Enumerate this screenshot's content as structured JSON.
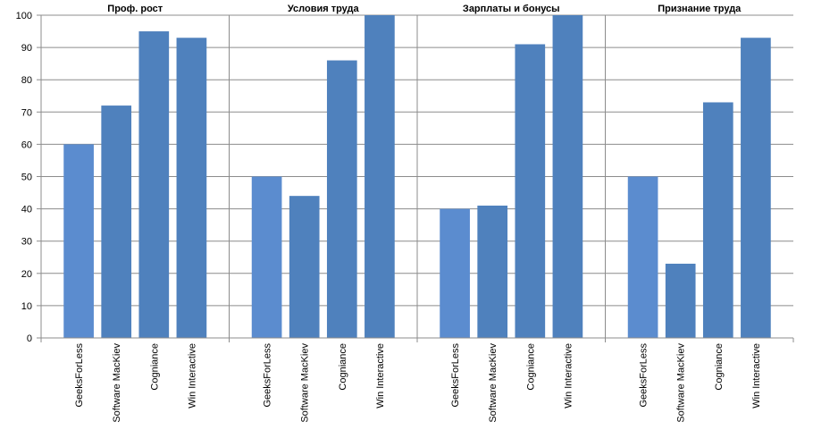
{
  "chart_data": {
    "type": "bar",
    "groups": [
      {
        "title": "Проф. рост",
        "values": [
          60,
          72,
          95,
          93
        ]
      },
      {
        "title": "Условия труда",
        "values": [
          50,
          44,
          86,
          100
        ]
      },
      {
        "title": "Зарплаты и бонусы",
        "values": [
          40,
          41,
          91,
          100
        ]
      },
      {
        "title": "Признание труда",
        "values": [
          50,
          23,
          73,
          93
        ]
      }
    ],
    "categories": [
      "GeeksForLess",
      "Software MacKiev",
      "Cogniance",
      "Win Interactive"
    ],
    "ylim": [
      0,
      100
    ],
    "yticks": [
      0,
      10,
      20,
      30,
      40,
      50,
      60,
      70,
      80,
      90,
      100
    ],
    "grid": true,
    "legend": "none",
    "colors": {
      "first_bar": "#5b8ccf",
      "other_bars": "#4f81bd",
      "grid": "#8c8c8c",
      "axis": "#8c8c8c"
    }
  }
}
